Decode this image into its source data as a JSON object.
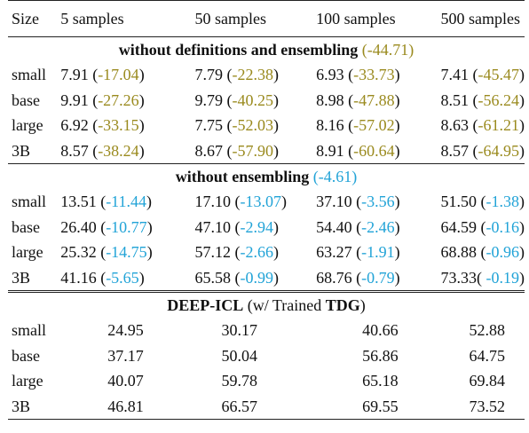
{
  "table": {
    "columns": [
      "Size",
      "5 samples",
      "50 samples",
      "100 samples",
      "500 samples"
    ],
    "section1": {
      "title": "without definitions and ensembling",
      "delta": "(-44.71)",
      "rows": [
        {
          "size": "small",
          "cells": [
            [
              "7.91 (",
              "-17.04",
              ")"
            ],
            [
              "7.79 (",
              "-22.38",
              ")"
            ],
            [
              "6.93 (",
              "-33.73",
              ")"
            ],
            [
              "7.41 (",
              "-45.47",
              ")"
            ]
          ]
        },
        {
          "size": "base",
          "cells": [
            [
              "9.91 (",
              "-27.26",
              ")"
            ],
            [
              "9.79 (",
              "-40.25",
              ")"
            ],
            [
              "8.98 (",
              "-47.88",
              ")"
            ],
            [
              "8.51 (",
              "-56.24",
              ")"
            ]
          ]
        },
        {
          "size": "large",
          "cells": [
            [
              "6.92 (",
              "-33.15",
              ")"
            ],
            [
              "7.75 (",
              "-52.03",
              ")"
            ],
            [
              "8.16 (",
              "-57.02",
              ")"
            ],
            [
              "8.63 (",
              "-61.21",
              ")"
            ]
          ]
        },
        {
          "size": "3B",
          "cells": [
            [
              "8.57 (",
              "-38.24",
              ")"
            ],
            [
              "8.67 (",
              "-57.90",
              ")"
            ],
            [
              "8.91 (",
              "-60.64",
              ")"
            ],
            [
              "8.57 (",
              "-64.95",
              ")"
            ]
          ]
        }
      ]
    },
    "section2": {
      "title": "without ensembling",
      "delta": "(-4.61)",
      "rows": [
        {
          "size": "small",
          "cells": [
            [
              "13.51 (",
              "-11.44",
              ")"
            ],
            [
              "17.10 (",
              "-13.07",
              ")"
            ],
            [
              "37.10 (",
              "-3.56",
              ")"
            ],
            [
              "51.50 (",
              "-1.38",
              ")"
            ]
          ]
        },
        {
          "size": "base",
          "cells": [
            [
              "26.40 (",
              "-10.77",
              ")"
            ],
            [
              "47.10 (",
              "-2.94",
              ")"
            ],
            [
              "54.40 (",
              "-2.46",
              ")"
            ],
            [
              "64.59 (",
              "-0.16",
              ")"
            ]
          ]
        },
        {
          "size": "large",
          "cells": [
            [
              "25.32 (",
              "-14.75",
              ")"
            ],
            [
              "57.12 (",
              "-2.66",
              ")"
            ],
            [
              "63.27 (",
              "-1.91",
              ")"
            ],
            [
              "68.88 (",
              "-0.96",
              ")"
            ]
          ]
        },
        {
          "size": "3B",
          "cells": [
            [
              "41.16 (",
              "-5.65",
              ")"
            ],
            [
              "65.58 (",
              "-0.99",
              ")"
            ],
            [
              "68.76 (",
              "-0.79",
              ")"
            ],
            [
              "73.33( ",
              "-0.19",
              ")"
            ]
          ]
        }
      ]
    },
    "section3": {
      "title_bold": "DEEP-ICL",
      "title_mid": " (w/ Trained ",
      "title_bold2": "TDG",
      "title_end": ")",
      "rows": [
        {
          "size": "small",
          "cells": [
            "24.95",
            "30.17",
            "40.66",
            "52.88"
          ]
        },
        {
          "size": "base",
          "cells": [
            "37.17",
            "50.04",
            "56.86",
            "64.75"
          ]
        },
        {
          "size": "large",
          "cells": [
            "40.07",
            "59.78",
            "65.18",
            "69.84"
          ]
        },
        {
          "size": "3B",
          "cells": [
            "46.81",
            "66.57",
            "69.55",
            "73.52"
          ]
        }
      ]
    }
  },
  "colors": {
    "olive": "#9a8a1e",
    "blue": "#21a3d7"
  }
}
